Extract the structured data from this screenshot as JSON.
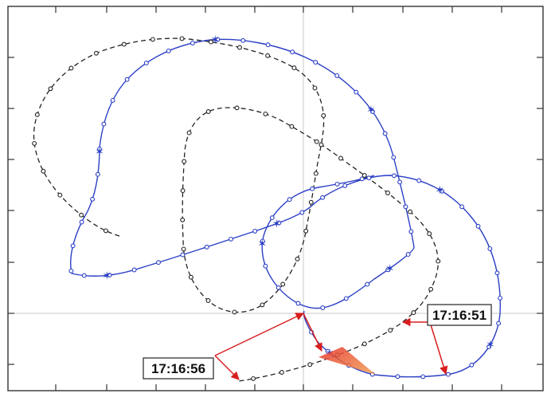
{
  "figure": {
    "colors": {
      "frame": "#333333",
      "blue_track": "#2b3fc4",
      "black_track": "#222222",
      "arrows": "#d81e1e",
      "wedge": "#e8502a"
    },
    "annotations": [
      {
        "id": "time-start",
        "text": "17:16:51"
      },
      {
        "id": "time-end",
        "text": "17:16:56"
      }
    ]
  }
}
